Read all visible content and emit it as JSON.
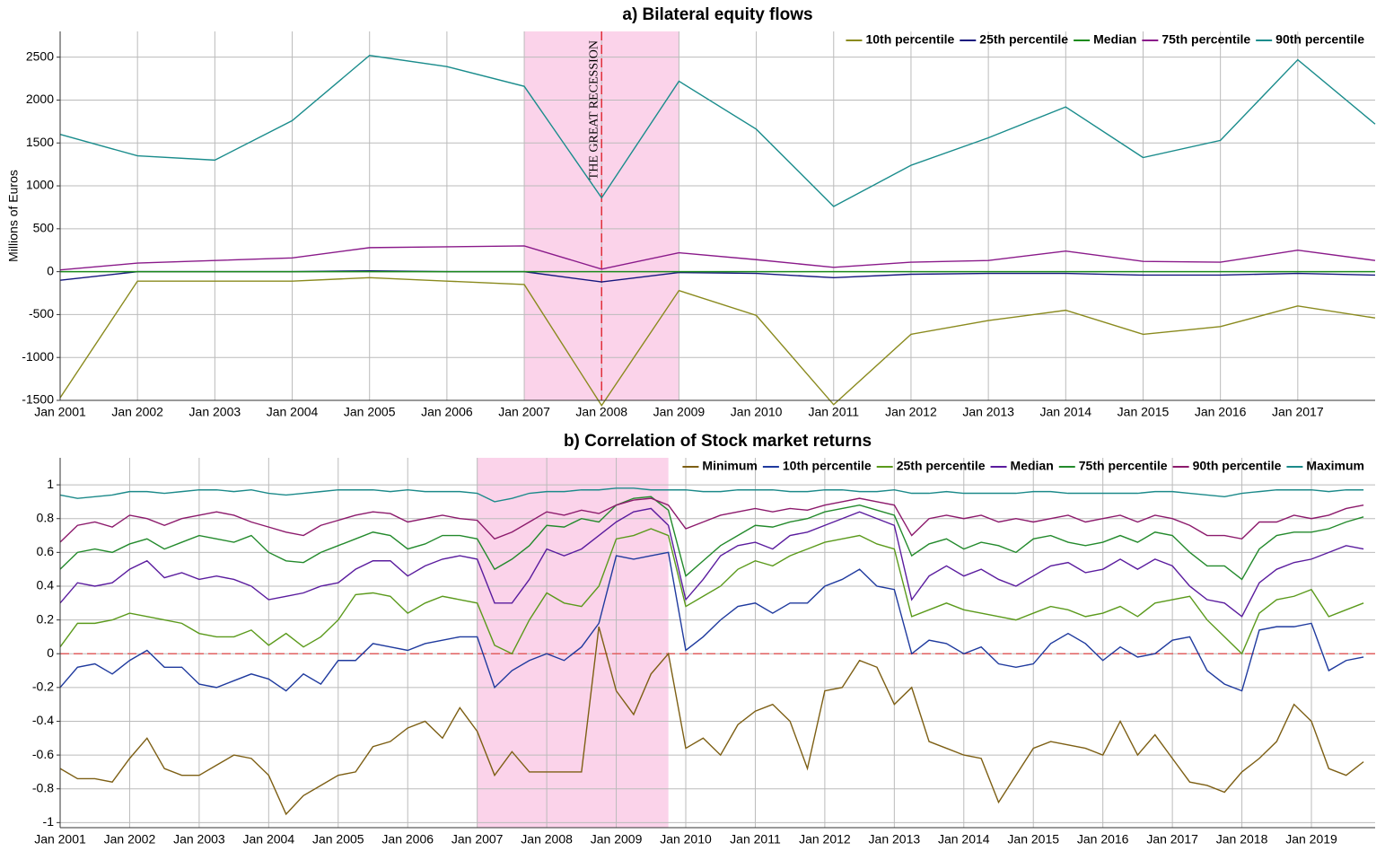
{
  "chart_data": [
    {
      "type": "line",
      "title": "a) Bilateral equity flows",
      "ylabel": "Millions of Euros",
      "x": [
        "2001-01",
        "2002-01",
        "2003-01",
        "2004-01",
        "2005-01",
        "2006-01",
        "2007-01",
        "2008-01",
        "2009-01",
        "2010-01",
        "2011-01",
        "2012-01",
        "2013-01",
        "2014-01",
        "2015-01",
        "2016-01",
        "2017-01",
        "2018-01"
      ],
      "xlim": [
        "2001-01",
        "2018-01"
      ],
      "xticks": [
        {
          "value": "2001-01",
          "label": "Jan 2001"
        },
        {
          "value": "2002-01",
          "label": "Jan 2002"
        },
        {
          "value": "2003-01",
          "label": "Jan 2003"
        },
        {
          "value": "2004-01",
          "label": "Jan 2004"
        },
        {
          "value": "2005-01",
          "label": "Jan 2005"
        },
        {
          "value": "2006-01",
          "label": "Jan 2006"
        },
        {
          "value": "2007-01",
          "label": "Jan 2007"
        },
        {
          "value": "2008-01",
          "label": "Jan 2008"
        },
        {
          "value": "2009-01",
          "label": "Jan 2009"
        },
        {
          "value": "2010-01",
          "label": "Jan 2010"
        },
        {
          "value": "2011-01",
          "label": "Jan 2011"
        },
        {
          "value": "2012-01",
          "label": "Jan 2012"
        },
        {
          "value": "2013-01",
          "label": "Jan 2013"
        },
        {
          "value": "2014-01",
          "label": "Jan 2014"
        },
        {
          "value": "2015-01",
          "label": "Jan 2015"
        },
        {
          "value": "2016-01",
          "label": "Jan 2016"
        },
        {
          "value": "2017-01",
          "label": "Jan 2017"
        }
      ],
      "ylim": [
        -1500,
        2800
      ],
      "yticks": [
        -1500,
        -1000,
        -500,
        0,
        500,
        1000,
        1500,
        2000,
        2500
      ],
      "grid": true,
      "legend": "upper right",
      "shade": [
        "2007-01",
        "2009-01"
      ],
      "shade_color": "#fbd3ea",
      "annotation": "THE GREAT RECESSION",
      "annotation_x": "2008-01",
      "annotation_color": "#e0303a",
      "series": [
        {
          "name": "10th percentile",
          "color": "#8a8a1e",
          "values": [
            -1470,
            -110,
            -110,
            -110,
            -70,
            -110,
            -150,
            -1560,
            -220,
            -510,
            -1550,
            -730,
            -570,
            -450,
            -730,
            -640,
            -400,
            -540
          ]
        },
        {
          "name": "25th percentile",
          "color": "#16167e",
          "values": [
            -100,
            0,
            0,
            0,
            10,
            0,
            0,
            -120,
            -10,
            -20,
            -70,
            -30,
            -20,
            -20,
            -40,
            -40,
            -20,
            -40
          ]
        },
        {
          "name": "Median",
          "color": "#1b8a1b",
          "values": [
            0,
            0,
            0,
            0,
            0,
            0,
            0,
            0,
            0,
            0,
            0,
            0,
            0,
            0,
            0,
            0,
            0,
            0
          ]
        },
        {
          "name": "75th percentile",
          "color": "#8a1a8a",
          "values": [
            20,
            100,
            130,
            160,
            280,
            290,
            300,
            30,
            220,
            140,
            50,
            110,
            130,
            240,
            120,
            110,
            250,
            130
          ]
        },
        {
          "name": "90th percentile",
          "color": "#1a8c8c",
          "values": [
            1600,
            1350,
            1300,
            1760,
            2520,
            2390,
            2160,
            860,
            2220,
            1660,
            760,
            1240,
            1560,
            1920,
            1330,
            1530,
            2470,
            1720
          ]
        }
      ]
    },
    {
      "type": "line",
      "title": "b) Correlation of Stock market returns",
      "x": [
        "2001-01",
        "2001-04",
        "2001-07",
        "2001-10",
        "2002-01",
        "2002-04",
        "2002-07",
        "2002-10",
        "2003-01",
        "2003-04",
        "2003-07",
        "2003-10",
        "2004-01",
        "2004-04",
        "2004-07",
        "2004-10",
        "2005-01",
        "2005-04",
        "2005-07",
        "2005-10",
        "2006-01",
        "2006-04",
        "2006-07",
        "2006-10",
        "2007-01",
        "2007-04",
        "2007-07",
        "2007-10",
        "2008-01",
        "2008-04",
        "2008-07",
        "2008-10",
        "2009-01",
        "2009-04",
        "2009-07",
        "2009-10",
        "2010-01",
        "2010-04",
        "2010-07",
        "2010-10",
        "2011-01",
        "2011-04",
        "2011-07",
        "2011-10",
        "2012-01",
        "2012-04",
        "2012-07",
        "2012-10",
        "2013-01",
        "2013-04",
        "2013-07",
        "2013-10",
        "2014-01",
        "2014-04",
        "2014-07",
        "2014-10",
        "2015-01",
        "2015-04",
        "2015-07",
        "2015-10",
        "2016-01",
        "2016-04",
        "2016-07",
        "2016-10",
        "2017-01",
        "2017-04",
        "2017-07",
        "2017-10",
        "2018-01",
        "2018-04",
        "2018-07",
        "2018-10",
        "2019-01",
        "2019-04",
        "2019-07",
        "2019-10"
      ],
      "xlim": [
        "2001-01",
        "2019-12"
      ],
      "xticks": [
        {
          "value": "2001-01",
          "label": "Jan 2001"
        },
        {
          "value": "2002-01",
          "label": "Jan 2002"
        },
        {
          "value": "2003-01",
          "label": "Jan 2003"
        },
        {
          "value": "2004-01",
          "label": "Jan 2004"
        },
        {
          "value": "2005-01",
          "label": "Jan 2005"
        },
        {
          "value": "2006-01",
          "label": "Jan 2006"
        },
        {
          "value": "2007-01",
          "label": "Jan 2007"
        },
        {
          "value": "2008-01",
          "label": "Jan 2008"
        },
        {
          "value": "2009-01",
          "label": "Jan 2009"
        },
        {
          "value": "2010-01",
          "label": "Jan 2010"
        },
        {
          "value": "2011-01",
          "label": "Jan 2011"
        },
        {
          "value": "2012-01",
          "label": "Jan 2012"
        },
        {
          "value": "2013-01",
          "label": "Jan 2013"
        },
        {
          "value": "2014-01",
          "label": "Jan 2014"
        },
        {
          "value": "2015-01",
          "label": "Jan 2015"
        },
        {
          "value": "2016-01",
          "label": "Jan 2016"
        },
        {
          "value": "2017-01",
          "label": "Jan 2017"
        },
        {
          "value": "2018-01",
          "label": "Jan 2018"
        },
        {
          "value": "2019-01",
          "label": "Jan 2019"
        }
      ],
      "ylim": [
        -1.03,
        1.16
      ],
      "yticks": [
        -1,
        -0.8,
        -0.6,
        -0.4,
        -0.2,
        0,
        0.2,
        0.4,
        0.6,
        0.8,
        1
      ],
      "grid": true,
      "legend": "upper right",
      "shade": [
        "2007-01",
        "2009-10"
      ],
      "shade_color": "#fbd3ea",
      "hline": 0,
      "hline_color": "#e06060",
      "series": [
        {
          "name": "Minimum",
          "color": "#7d5f14",
          "values": [
            -0.68,
            -0.74,
            -0.74,
            -0.76,
            -0.62,
            -0.5,
            -0.68,
            -0.72,
            -0.72,
            -0.66,
            -0.6,
            -0.62,
            -0.72,
            -0.95,
            -0.84,
            -0.78,
            -0.72,
            -0.7,
            -0.55,
            -0.52,
            -0.44,
            -0.4,
            -0.5,
            -0.32,
            -0.46,
            -0.72,
            -0.58,
            -0.7,
            -0.7,
            -0.7,
            -0.7,
            0.16,
            -0.22,
            -0.36,
            -0.12,
            0,
            -0.56,
            -0.5,
            -0.6,
            -0.42,
            -0.34,
            -0.3,
            -0.4,
            -0.68,
            -0.22,
            -0.2,
            -0.04,
            -0.08,
            -0.3,
            -0.2,
            -0.52,
            -0.56,
            -0.6,
            -0.62,
            -0.88,
            -0.72,
            -0.56,
            -0.52,
            -0.54,
            -0.56,
            -0.6,
            -0.4,
            -0.6,
            -0.48,
            -0.62,
            -0.76,
            -0.78,
            -0.82,
            -0.7,
            -0.62,
            -0.52,
            -0.3,
            -0.4,
            -0.68,
            -0.72,
            -0.64
          ]
        },
        {
          "name": "10th percentile",
          "color": "#1f3a9e",
          "values": [
            -0.2,
            -0.08,
            -0.06,
            -0.12,
            -0.04,
            0.02,
            -0.08,
            -0.08,
            -0.18,
            -0.2,
            -0.16,
            -0.12,
            -0.15,
            -0.22,
            -0.12,
            -0.18,
            -0.04,
            -0.04,
            0.06,
            0.04,
            0.02,
            0.06,
            0.08,
            0.1,
            0.1,
            -0.2,
            -0.1,
            -0.04,
            0,
            -0.04,
            0.04,
            0.18,
            0.58,
            0.56,
            0.58,
            0.6,
            0.02,
            0.1,
            0.2,
            0.28,
            0.3,
            0.24,
            0.3,
            0.3,
            0.4,
            0.44,
            0.5,
            0.4,
            0.38,
            0,
            0.08,
            0.06,
            0,
            0.04,
            -0.06,
            -0.08,
            -0.06,
            0.06,
            0.12,
            0.06,
            -0.04,
            0.04,
            -0.02,
            0,
            0.08,
            0.1,
            -0.1,
            -0.18,
            -0.22,
            0.14,
            0.16,
            0.16,
            0.18,
            -0.1,
            -0.04,
            -0.02
          ]
        },
        {
          "name": "25th percentile",
          "color": "#5b9a1c",
          "values": [
            0.04,
            0.18,
            0.18,
            0.2,
            0.24,
            0.22,
            0.2,
            0.18,
            0.12,
            0.1,
            0.1,
            0.14,
            0.05,
            0.12,
            0.04,
            0.1,
            0.2,
            0.35,
            0.36,
            0.34,
            0.24,
            0.3,
            0.34,
            0.32,
            0.3,
            0.05,
            0,
            0.2,
            0.36,
            0.3,
            0.28,
            0.4,
            0.68,
            0.7,
            0.74,
            0.7,
            0.28,
            0.34,
            0.4,
            0.5,
            0.55,
            0.52,
            0.58,
            0.62,
            0.66,
            0.68,
            0.7,
            0.65,
            0.62,
            0.22,
            0.26,
            0.3,
            0.26,
            0.24,
            0.22,
            0.2,
            0.24,
            0.28,
            0.26,
            0.22,
            0.24,
            0.28,
            0.22,
            0.3,
            0.32,
            0.34,
            0.2,
            0.1,
            0,
            0.24,
            0.32,
            0.34,
            0.38,
            0.22,
            0.26,
            0.3
          ]
        },
        {
          "name": "Median",
          "color": "#5a1c9e",
          "values": [
            0.3,
            0.42,
            0.4,
            0.42,
            0.5,
            0.55,
            0.45,
            0.48,
            0.44,
            0.46,
            0.44,
            0.4,
            0.32,
            0.34,
            0.36,
            0.4,
            0.42,
            0.5,
            0.55,
            0.55,
            0.46,
            0.52,
            0.56,
            0.58,
            0.56,
            0.3,
            0.3,
            0.44,
            0.62,
            0.58,
            0.62,
            0.7,
            0.78,
            0.84,
            0.86,
            0.76,
            0.32,
            0.44,
            0.58,
            0.64,
            0.66,
            0.62,
            0.7,
            0.72,
            0.76,
            0.8,
            0.84,
            0.8,
            0.76,
            0.32,
            0.46,
            0.52,
            0.46,
            0.5,
            0.44,
            0.4,
            0.46,
            0.52,
            0.54,
            0.48,
            0.5,
            0.56,
            0.5,
            0.56,
            0.52,
            0.4,
            0.32,
            0.3,
            0.22,
            0.42,
            0.5,
            0.54,
            0.56,
            0.6,
            0.64,
            0.62
          ]
        },
        {
          "name": "75th percentile",
          "color": "#238a2c",
          "values": [
            0.5,
            0.6,
            0.62,
            0.6,
            0.65,
            0.68,
            0.62,
            0.66,
            0.7,
            0.68,
            0.66,
            0.7,
            0.6,
            0.55,
            0.54,
            0.6,
            0.64,
            0.68,
            0.72,
            0.7,
            0.62,
            0.65,
            0.7,
            0.7,
            0.68,
            0.5,
            0.56,
            0.64,
            0.76,
            0.75,
            0.8,
            0.78,
            0.88,
            0.92,
            0.93,
            0.85,
            0.46,
            0.55,
            0.64,
            0.7,
            0.76,
            0.75,
            0.78,
            0.8,
            0.84,
            0.86,
            0.88,
            0.85,
            0.82,
            0.58,
            0.65,
            0.68,
            0.62,
            0.66,
            0.64,
            0.6,
            0.68,
            0.7,
            0.66,
            0.64,
            0.66,
            0.7,
            0.66,
            0.72,
            0.7,
            0.6,
            0.52,
            0.52,
            0.44,
            0.62,
            0.7,
            0.72,
            0.72,
            0.74,
            0.78,
            0.81
          ]
        },
        {
          "name": "90th percentile",
          "color": "#8c1a6c",
          "values": [
            0.66,
            0.76,
            0.78,
            0.75,
            0.82,
            0.8,
            0.76,
            0.8,
            0.82,
            0.84,
            0.82,
            0.78,
            0.75,
            0.72,
            0.7,
            0.76,
            0.79,
            0.82,
            0.84,
            0.83,
            0.78,
            0.8,
            0.82,
            0.8,
            0.79,
            0.68,
            0.72,
            0.78,
            0.84,
            0.82,
            0.85,
            0.83,
            0.88,
            0.91,
            0.92,
            0.88,
            0.74,
            0.78,
            0.82,
            0.84,
            0.86,
            0.84,
            0.86,
            0.85,
            0.88,
            0.9,
            0.92,
            0.9,
            0.88,
            0.7,
            0.8,
            0.82,
            0.8,
            0.82,
            0.78,
            0.8,
            0.78,
            0.8,
            0.82,
            0.78,
            0.8,
            0.82,
            0.78,
            0.82,
            0.8,
            0.76,
            0.7,
            0.7,
            0.68,
            0.78,
            0.78,
            0.82,
            0.8,
            0.82,
            0.86,
            0.88
          ]
        },
        {
          "name": "Maximum",
          "color": "#1c8a8a",
          "values": [
            0.94,
            0.92,
            0.93,
            0.94,
            0.96,
            0.96,
            0.95,
            0.96,
            0.97,
            0.97,
            0.96,
            0.97,
            0.95,
            0.94,
            0.95,
            0.96,
            0.97,
            0.97,
            0.97,
            0.96,
            0.97,
            0.96,
            0.96,
            0.96,
            0.95,
            0.9,
            0.92,
            0.95,
            0.96,
            0.96,
            0.97,
            0.97,
            0.98,
            0.98,
            0.97,
            0.97,
            0.97,
            0.96,
            0.96,
            0.97,
            0.97,
            0.97,
            0.96,
            0.96,
            0.97,
            0.97,
            0.96,
            0.96,
            0.97,
            0.95,
            0.95,
            0.96,
            0.95,
            0.95,
            0.95,
            0.95,
            0.96,
            0.96,
            0.95,
            0.95,
            0.95,
            0.95,
            0.95,
            0.96,
            0.96,
            0.95,
            0.94,
            0.93,
            0.95,
            0.96,
            0.97,
            0.97,
            0.97,
            0.96,
            0.97,
            0.97
          ]
        }
      ]
    }
  ]
}
